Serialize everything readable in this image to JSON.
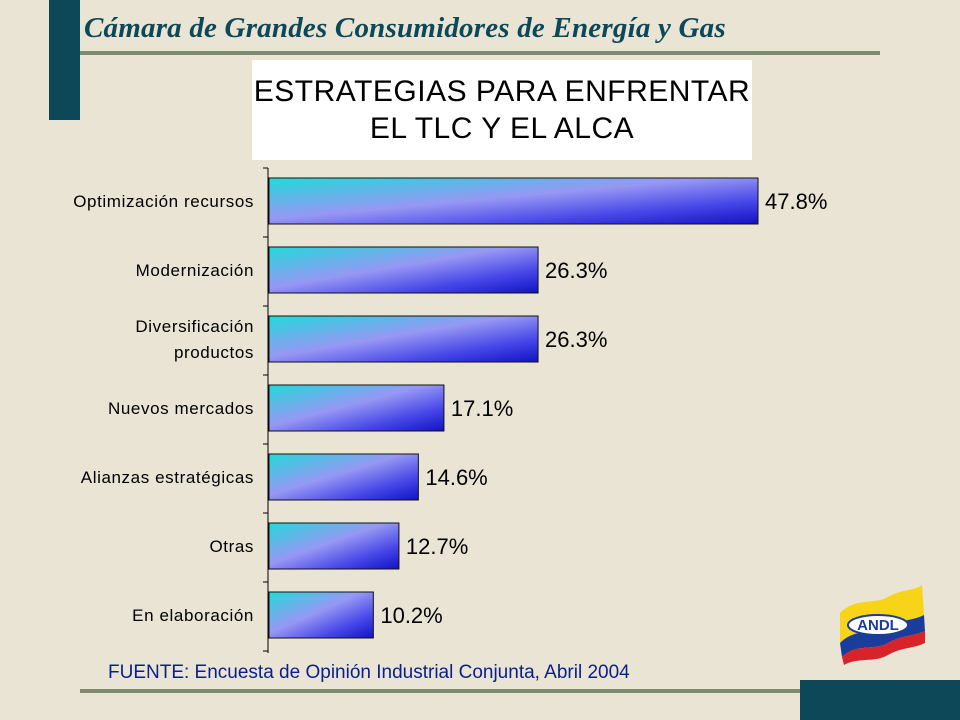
{
  "header": {
    "title": "Cámara  de Grandes Consumidores de Energía y Gas"
  },
  "chart_title": {
    "line1": "ESTRATEGIAS PARA ENFRENTAR",
    "line2": "EL TLC Y EL ALCA"
  },
  "chart_data": {
    "type": "bar",
    "orientation": "horizontal",
    "title": "ESTRATEGIAS PARA ENFRENTAR EL TLC Y EL ALCA",
    "categories": [
      [
        "Optimización recursos"
      ],
      [
        "Modernización"
      ],
      [
        "Diversificación",
        "productos"
      ],
      [
        "Nuevos mercados"
      ],
      [
        "Alianzas estratégicas"
      ],
      [
        "Otras"
      ],
      [
        "En elaboración"
      ]
    ],
    "values": [
      47.8,
      26.3,
      26.3,
      17.1,
      14.6,
      12.7,
      10.2
    ],
    "value_labels": [
      "47.8%",
      "26.3%",
      "26.3%",
      "17.1%",
      "14.6%",
      "12.7%",
      "10.2%"
    ],
    "xlim": [
      0,
      47.8
    ],
    "grid": false,
    "legend": "none"
  },
  "source": "FUENTE: Encuesta de Opinión Industrial Conjunta, Abril 2004",
  "logo": {
    "text": "ANDL",
    "colors": [
      "#f7d417",
      "#1a3c9a",
      "#d8232a"
    ]
  },
  "colors": {
    "accent": "#0d4859",
    "background": "#e9e4d4",
    "bar_gradient": [
      "#20d6d6",
      "#8f8ff2",
      "#3e3ee6",
      "#1414c8"
    ],
    "source_text": "#0a1f8c"
  }
}
